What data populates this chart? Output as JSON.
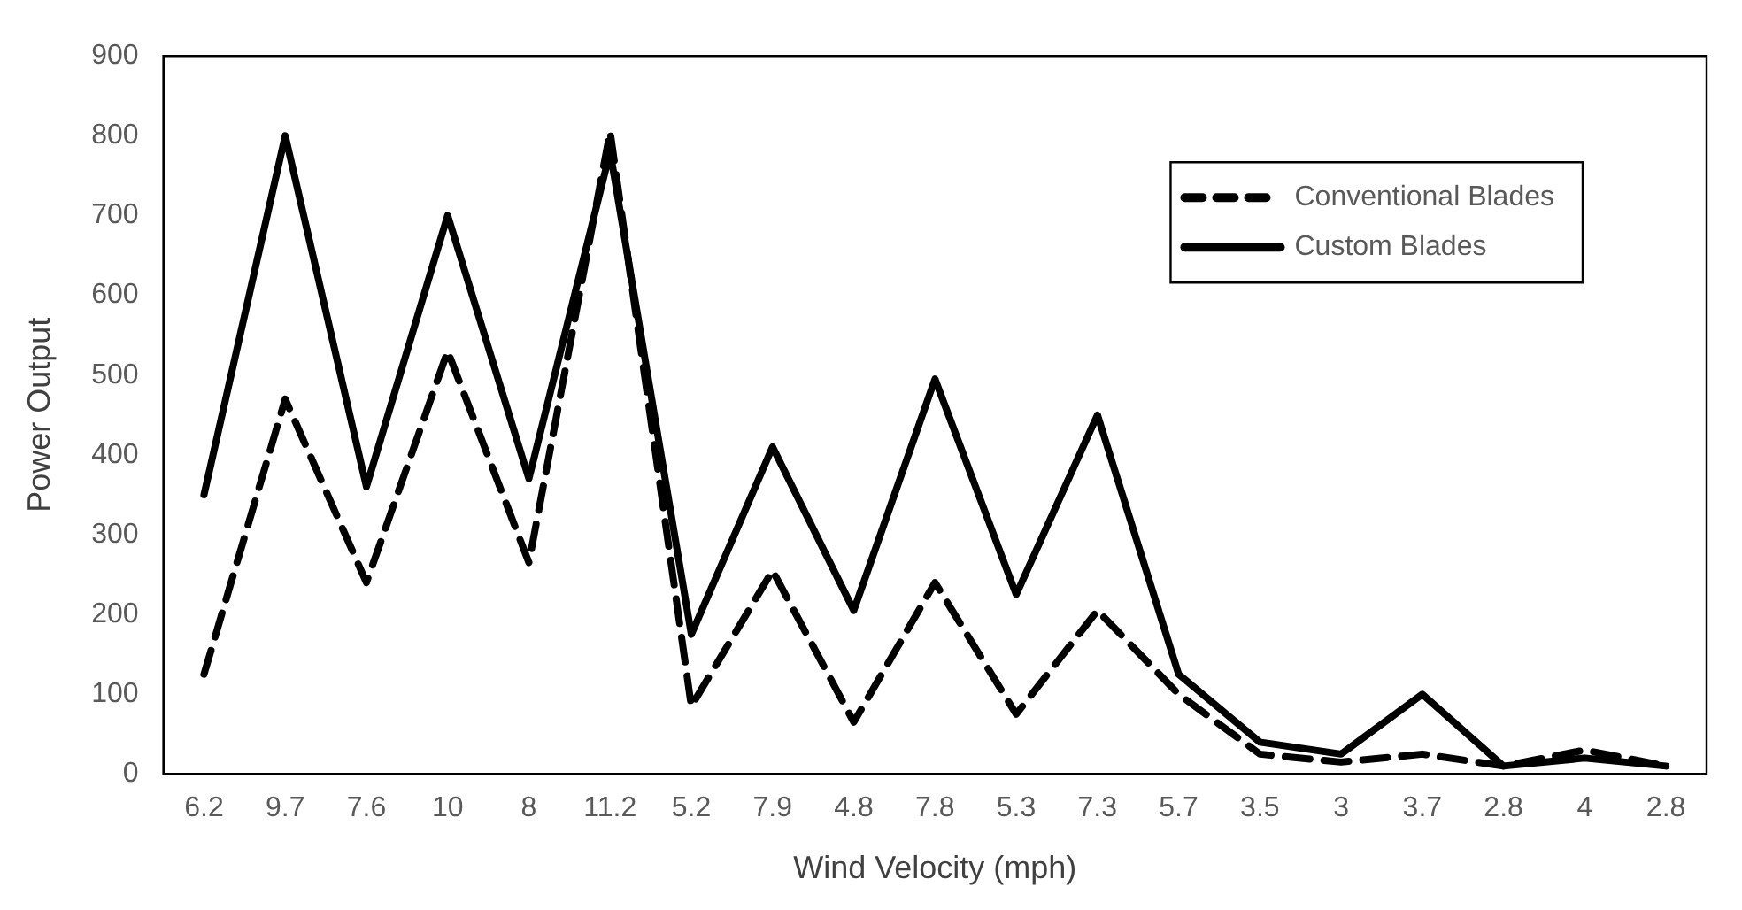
{
  "chart_data": {
    "type": "line",
    "xlabel": "Wind Velocity (mph)",
    "ylabel": "Power Output",
    "categories": [
      "6.2",
      "9.7",
      "7.6",
      "10",
      "8",
      "11.2",
      "5.2",
      "7.9",
      "4.8",
      "7.8",
      "5.3",
      "7.3",
      "5.7",
      "3.5",
      "3",
      "3.7",
      "2.8",
      "4",
      "2.8"
    ],
    "series": [
      {
        "name": "Conventional Blades",
        "color": "#000000",
        "line_style": "dashed",
        "values": [
          125,
          470,
          240,
          530,
          265,
          805,
          85,
          255,
          65,
          240,
          75,
          205,
          100,
          25,
          15,
          25,
          10,
          30,
          10
        ]
      },
      {
        "name": "Custom Blades",
        "color": "#000000",
        "line_style": "solid",
        "values": [
          350,
          800,
          360,
          700,
          370,
          780,
          175,
          410,
          205,
          495,
          225,
          450,
          125,
          40,
          25,
          100,
          10,
          20,
          10
        ]
      }
    ],
    "ylim": [
      0,
      900
    ],
    "yticks": [
      0,
      100,
      200,
      300,
      400,
      500,
      600,
      700,
      800,
      900
    ],
    "grid": false,
    "legend": "top right",
    "marker": "none"
  }
}
